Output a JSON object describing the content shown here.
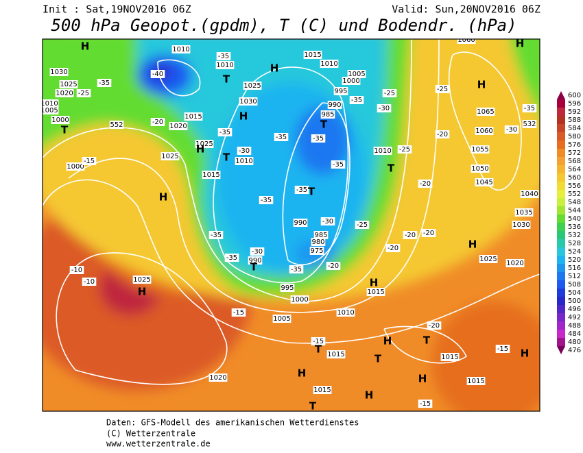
{
  "header": {
    "init": "Init : Sat,19NOV2016 06Z",
    "valid": "Valid: Sun,20NOV2016 06Z",
    "title": "500 hPa Geopot.(gpdm), T (C) und Bodendr. (hPa)"
  },
  "footer": {
    "lines": [
      "Daten: GFS-Modell des amerikanischen Wetterdienstes",
      "(C) Wetterzentrale",
      "www.wetterzentrale.de"
    ]
  },
  "legend": {
    "values": [
      600,
      596,
      592,
      588,
      584,
      580,
      576,
      572,
      568,
      564,
      560,
      556,
      552,
      548,
      544,
      540,
      536,
      532,
      528,
      524,
      520,
      516,
      512,
      508,
      504,
      500,
      496,
      492,
      488,
      484,
      480,
      476
    ],
    "colors": [
      "#8c0046",
      "#a8003c",
      "#c0283c",
      "#b43222",
      "#c84628",
      "#dc5a28",
      "#e66e1e",
      "#f08c28",
      "#f5a032",
      "#f5b432",
      "#f5c832",
      "#f0dc32",
      "#e6f03c",
      "#c8f03c",
      "#a0e632",
      "#64dc32",
      "#3cd250",
      "#28c878",
      "#28c8aa",
      "#28c8dc",
      "#1eb4f0",
      "#1e96f0",
      "#1e78f0",
      "#1e5af0",
      "#1e3cdc",
      "#2828c8",
      "#5028c8",
      "#7828c8",
      "#a028c8",
      "#c828c8",
      "#a0148c",
      "#78005a"
    ]
  },
  "map": {
    "labels": [
      "H",
      "1010",
      "-40",
      "1030",
      "1025",
      "-25",
      "1020",
      "-35",
      "1010",
      "1005",
      "1000",
      "T",
      "552",
      "-20",
      "1020",
      "1015",
      "1025",
      "H",
      "-35",
      "1010",
      "T",
      "1025",
      "1030",
      "H",
      "-35",
      "-30",
      "T",
      "1010",
      "-35",
      "1015",
      "1010",
      "H",
      "1005",
      "1000",
      "995",
      "990",
      "985",
      "T",
      "-35",
      "-35",
      "-35",
      "-35",
      "T",
      "-35",
      "-25",
      "-30",
      "1010",
      "-25",
      "T",
      "1000",
      "-15",
      "1025",
      "H",
      "1015",
      "-35",
      "-30",
      "-35",
      "990",
      "T",
      "990",
      "-30",
      "985",
      "980",
      "975",
      "-35",
      "-20",
      "-25",
      "-20",
      "-20",
      "-20",
      "-10",
      "-10",
      "1025",
      "H",
      "995",
      "1000",
      "-15",
      "1005",
      "1010",
      "H",
      "1015",
      "-15",
      "1015",
      "H",
      "T",
      "T",
      "H",
      "T",
      "1020",
      "1015",
      "H",
      "T",
      "H",
      "1015",
      "-15",
      "-15",
      "1015",
      "-20",
      "H",
      "1020",
      "1025",
      "H",
      "1030",
      "1035",
      "1040",
      "1045",
      "1050",
      "1055",
      "1060",
      "1065",
      "H",
      "-25",
      "-20",
      "-30",
      "-35",
      "532",
      "-20",
      "H",
      "1060"
    ]
  }
}
